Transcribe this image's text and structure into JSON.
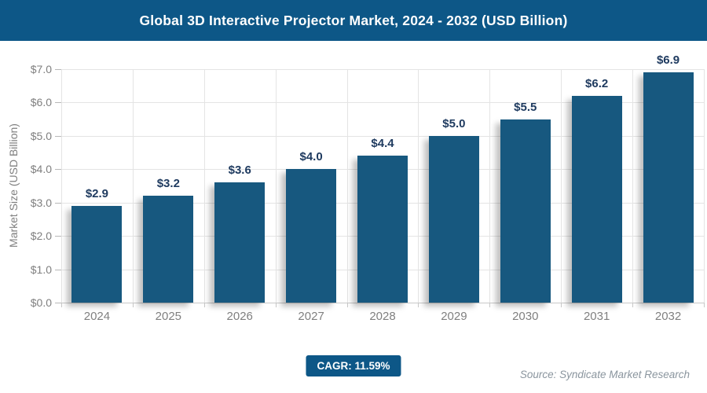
{
  "header": {
    "title": "Global 3D Interactive Projector Market, 2024 - 2032 (USD Billion)"
  },
  "chart_data": {
    "type": "bar",
    "title": "Global 3D Interactive Projector Market, 2024 - 2032 (USD Billion)",
    "categories": [
      "2024",
      "2025",
      "2026",
      "2027",
      "2028",
      "2029",
      "2030",
      "2031",
      "2032"
    ],
    "values": [
      2.9,
      3.2,
      3.6,
      4.0,
      4.4,
      5.0,
      5.5,
      6.2,
      6.9
    ],
    "value_labels": [
      "$2.9",
      "$3.2",
      "$3.6",
      "$4.0",
      "$4.4",
      "$5.0",
      "$5.5",
      "$6.2",
      "$6.9"
    ],
    "xlabel": "",
    "ylabel": "Market Size (USD Billion)",
    "ylim": [
      0,
      7
    ],
    "ytick_step": 1,
    "ytick_labels": [
      "$0.0",
      "$1.0",
      "$2.0",
      "$3.0",
      "$4.0",
      "$5.0",
      "$6.0",
      "$7.0"
    ],
    "grid": "horizontal gridlines at each $1.0 step, vertical gridlines at category boundaries",
    "legend": "none",
    "bar_color": "#17587f"
  },
  "footer": {
    "cagr_label": "CAGR: 11.59%",
    "source": "Source: Syndicate Market Research"
  },
  "colors": {
    "header_bg": "#0d5787",
    "bar": "#17587f",
    "badge_bg": "#0d5787",
    "data_label": "#1e3a5f",
    "tick_text": "#7f7f7f",
    "gridline": "#e4e4e4",
    "axis_line": "#c8c8c8",
    "source_text": "#8a959e",
    "title_text": "#ffffff"
  }
}
